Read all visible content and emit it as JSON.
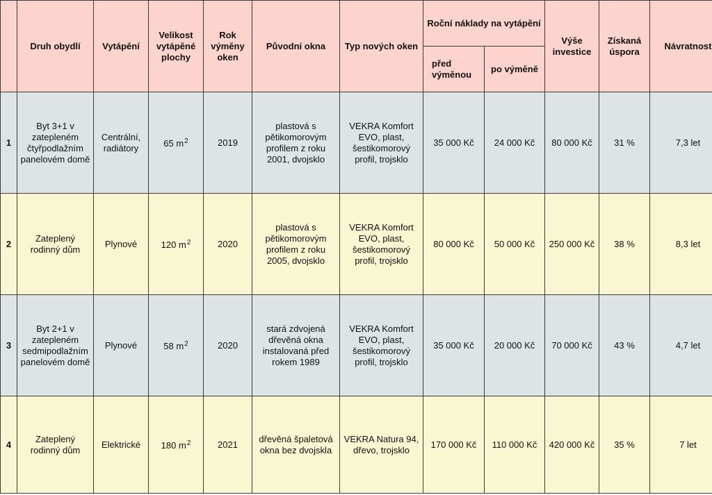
{
  "headers": {
    "type": "Druh obydlí",
    "heating": "Vytápění",
    "area": "Velikost vytápěné plochy",
    "year": "Rok výměny oken",
    "original": "Původní okna",
    "new_type": "Typ nových oken",
    "costs": "Roční náklady na vytápění",
    "before": "před výměnou",
    "after": "po výměně",
    "investment": "Výše investice",
    "savings": "Získaná úspora",
    "payback": "Návratnost"
  },
  "colors": {
    "header": "#fcd3cd",
    "row_blue": "#dee4e5",
    "row_yellow": "#f8f7d1"
  },
  "rows": [
    {
      "num": "1",
      "type": "Byt 3+1 v zatepleném čtyřpodlažním panelovém domě",
      "heating": "Centrální, radiátory",
      "area": "65 m",
      "area_sup": "2",
      "year": "2019",
      "original": "plastová s pětikomorovým profilem z roku 2001, dvojsklo",
      "new_type": "VEKRA Komfort EVO, plast, šestikomorový profil, trojsklo",
      "before": "35 000 Kč",
      "after": "24 000 Kč",
      "investment": "80 000 Kč",
      "savings": "31 %",
      "payback": "7,3 let"
    },
    {
      "num": "2",
      "type": "Zateplený rodinný dům",
      "heating": "Plynové",
      "area": "120 m",
      "area_sup": "2",
      "year": "2020",
      "original": "plastová s pětikomorovým profilem z roku 2005, dvojsklo",
      "new_type": "VEKRA Komfort EVO, plast, šestikomorový profil, trojsklo",
      "before": "80 000 Kč",
      "after": "50 000 Kč",
      "investment": "250 000 Kč",
      "savings": "38 %",
      "payback": "8,3 let"
    },
    {
      "num": "3",
      "type": "Byt 2+1 v zatepleném sedmipodlažním panelovém domě",
      "heating": "Plynové",
      "area": "58 m",
      "area_sup": "2",
      "year": "2020",
      "original": "stará zdvojená dřevěná okna instalovaná před rokem 1989",
      "new_type": "VEKRA Komfort EVO, plast, šestikomorový profil, trojsklo",
      "before": "35 000 Kč",
      "after": "20 000 Kč",
      "investment": "70 000 Kč",
      "savings": "43 %",
      "payback": "4,7 let"
    },
    {
      "num": "4",
      "type": "Zateplený rodinný dům",
      "heating": "Elektrické",
      "area": "180 m",
      "area_sup": "2",
      "year": "2021",
      "original": "dřevěná špaletová okna bez dvojskla",
      "new_type": "VEKRA Natura 94, dřevo, trojsklo",
      "before": "170 000 Kč",
      "after": "110 000 Kč",
      "investment": "420 000 Kč",
      "savings": "35 %",
      "payback": "7 let"
    }
  ]
}
